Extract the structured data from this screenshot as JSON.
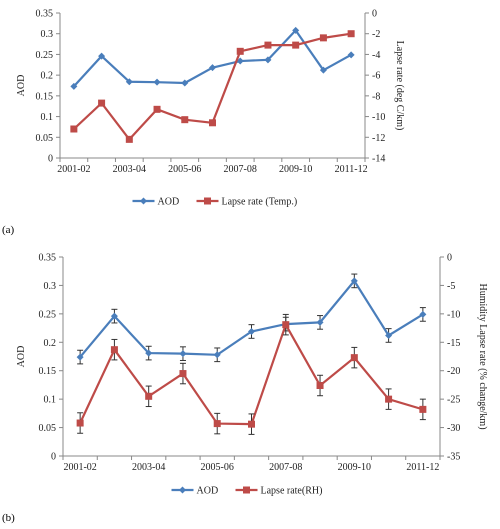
{
  "chart_data": [
    {
      "panel_label": "(a)",
      "type": "line",
      "categories": [
        "2001-02",
        "2002-03",
        "2003-04",
        "2004-05",
        "2005-06",
        "2006-07",
        "2007-08",
        "2008-09",
        "2009-10",
        "2010-11",
        "2011-12"
      ],
      "x_tick_labels": [
        "2001-02",
        "2003-04",
        "2005-06",
        "2007-08",
        "2009-10",
        "2011-12"
      ],
      "ylabel": "AOD",
      "ylim": [
        0,
        0.35
      ],
      "yticks": [
        "0",
        "0.05",
        "0.1",
        "0.15",
        "0.2",
        "0.25",
        "0.3",
        "0.35"
      ],
      "y2label": "Lapse rate (deg C/km)",
      "y2lim": [
        -14,
        0
      ],
      "y2ticks": [
        "0",
        "-2",
        "-4",
        "-6",
        "-8",
        "-10",
        "-12",
        "-14"
      ],
      "legend_position": "bottom",
      "grid": false,
      "series": [
        {
          "name": "AOD",
          "axis": "left",
          "color": "#4a7ebb",
          "marker": "diamond",
          "values": [
            0.173,
            0.246,
            0.184,
            0.183,
            0.181,
            0.218,
            0.234,
            0.237,
            0.308,
            0.212,
            0.249
          ]
        },
        {
          "name": "Lapse rate (Temp.)",
          "axis": "right",
          "color": "#be4b48",
          "marker": "square",
          "values": [
            -11.2,
            -8.7,
            -12.2,
            -9.3,
            -10.3,
            -10.6,
            -3.7,
            -3.1,
            -3.1,
            -2.4,
            -2.0
          ]
        }
      ]
    },
    {
      "panel_label": "(b)",
      "type": "line",
      "categories": [
        "2001-02",
        "2002-03",
        "2003-04",
        "2004-05",
        "2005-06",
        "2006-07",
        "2007-08",
        "2008-09",
        "2009-10",
        "2010-11",
        "2011-12"
      ],
      "x_tick_labels": [
        "2001-02",
        "2003-04",
        "2005-06",
        "2007-08",
        "2009-10",
        "2011-12"
      ],
      "ylabel": "AOD",
      "ylim": [
        0,
        0.35
      ],
      "yticks": [
        "0",
        "0.05",
        "0.1",
        "0.15",
        "0.2",
        "0.25",
        "0.3",
        "0.35"
      ],
      "y2label": "Humidity Lapse rate (% change/km)",
      "y2lim": [
        -35,
        0
      ],
      "y2ticks": [
        "0",
        "-5",
        "-10",
        "-15",
        "-20",
        "-25",
        "-30",
        "-35"
      ],
      "legend_position": "bottom",
      "grid": false,
      "series": [
        {
          "name": "AOD",
          "axis": "left",
          "color": "#4a7ebb",
          "marker": "diamond",
          "values": [
            0.174,
            0.246,
            0.181,
            0.18,
            0.178,
            0.219,
            0.232,
            0.235,
            0.308,
            0.212,
            0.249
          ],
          "error": [
            0.012,
            0.012,
            0.012,
            0.012,
            0.012,
            0.012,
            0.012,
            0.012,
            0.012,
            0.012,
            0.012
          ]
        },
        {
          "name": "Lapse rate(RH)",
          "axis": "right",
          "color": "#be4b48",
          "marker": "square",
          "values": [
            -29.2,
            -16.3,
            -24.5,
            -20.5,
            -29.3,
            -29.4,
            -11.9,
            -22.6,
            -17.7,
            -25.0,
            -26.8
          ],
          "error": [
            1.8,
            1.8,
            1.8,
            1.8,
            1.8,
            1.8,
            1.8,
            1.8,
            1.8,
            1.8,
            1.8
          ]
        }
      ]
    }
  ]
}
